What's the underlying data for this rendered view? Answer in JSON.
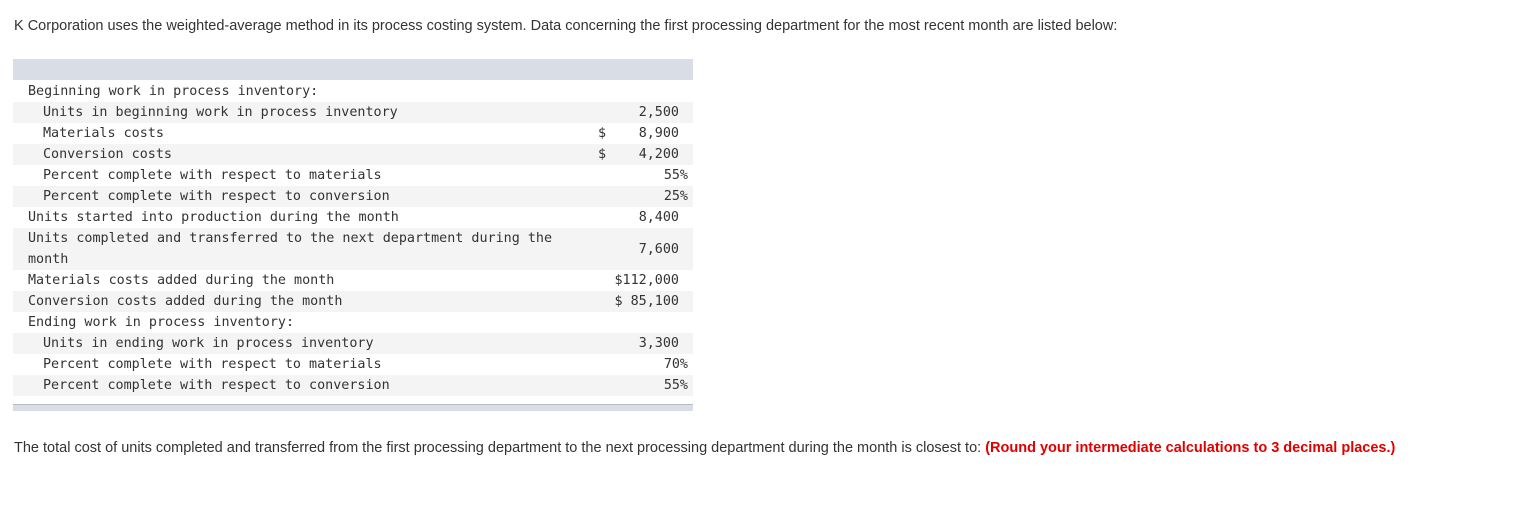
{
  "intro": "K Corporation uses the weighted-average method in its process costing system. Data concerning the first processing department for the most recent month are listed below:",
  "table": {
    "rows": [
      {
        "label": "Beginning work in process inventory:",
        "currency": "",
        "amount": "",
        "shaded": false,
        "indent": false
      },
      {
        "label": "Units in beginning work in process inventory",
        "currency": "",
        "amount": "2,500",
        "shaded": true,
        "indent": true
      },
      {
        "label": "Materials costs",
        "currency": "$",
        "amount": "8,900",
        "shaded": false,
        "indent": true
      },
      {
        "label": "Conversion costs",
        "currency": "$",
        "amount": "4,200",
        "shaded": true,
        "indent": true
      },
      {
        "label": "Percent complete with respect to materials",
        "currency": "",
        "amount": "55%",
        "shaded": false,
        "indent": true
      },
      {
        "label": "Percent complete with respect to conversion",
        "currency": "",
        "amount": "25%",
        "shaded": true,
        "indent": true
      },
      {
        "label": "Units started into production during the month",
        "currency": "",
        "amount": "8,400",
        "shaded": false,
        "indent": false
      },
      {
        "label": "Units completed and transferred to the next department during the month",
        "currency": "",
        "amount": "7,600",
        "shaded": true,
        "indent": false
      },
      {
        "label": "Materials costs added during the month",
        "currency": "",
        "amount": "$112,000",
        "shaded": false,
        "indent": false
      },
      {
        "label": "Conversion costs added during the month",
        "currency": "",
        "amount": "$ 85,100",
        "shaded": true,
        "indent": false
      },
      {
        "label": "Ending work in process inventory:",
        "currency": "",
        "amount": "",
        "shaded": false,
        "indent": false
      },
      {
        "label": "Units in ending work in process inventory",
        "currency": "",
        "amount": "3,300",
        "shaded": true,
        "indent": true
      },
      {
        "label": "Percent complete with respect to materials",
        "currency": "",
        "amount": "70%",
        "shaded": false,
        "indent": true
      },
      {
        "label": "Percent complete with respect to conversion",
        "currency": "",
        "amount": "55%",
        "shaded": true,
        "indent": true
      }
    ]
  },
  "question": {
    "text": "The total cost of units completed and transferred from the first processing department to the next processing department during the month is closest to: ",
    "instruction": "(Round your intermediate calculations to 3 decimal places.)",
    "instruction_color": "#e00000"
  }
}
